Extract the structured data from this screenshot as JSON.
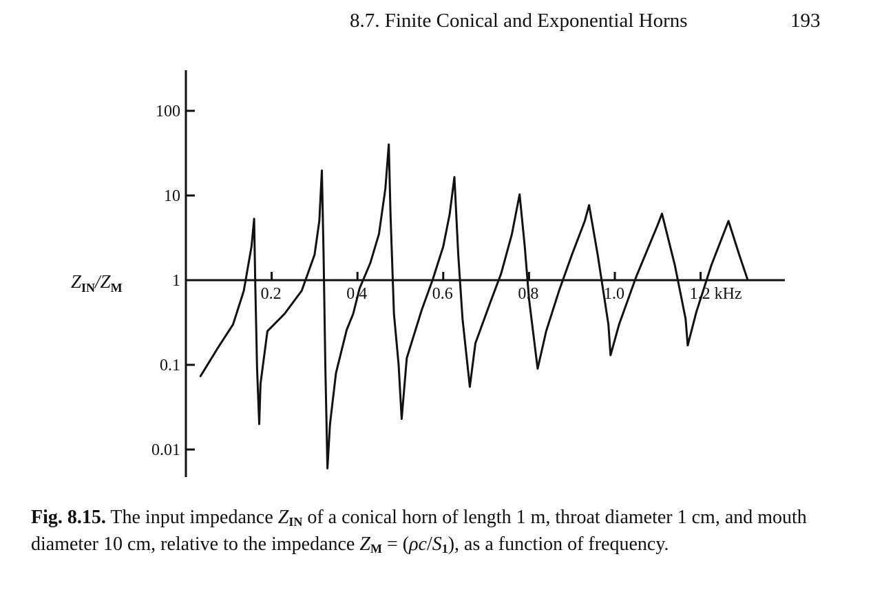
{
  "header": {
    "running_head": "8.7. Finite Conical and Exponential Horns",
    "page_number": "193"
  },
  "chart_data": {
    "type": "line",
    "title": "",
    "xlabel": "kHz",
    "ylabel": "Z_IN/Z_M",
    "ylabel_main": "Z",
    "ylabel_sub1": "IN",
    "ylabel_sep": "/Z",
    "ylabel_sub2": "M",
    "y_scale": "log",
    "xlim": [
      0.0,
      1.37
    ],
    "ylim": [
      0.005,
      300
    ],
    "grid": false,
    "x_ticks": [
      {
        "value": 0.2,
        "label": "0.2"
      },
      {
        "value": 0.4,
        "label": "0.4"
      },
      {
        "value": 0.6,
        "label": "0.6"
      },
      {
        "value": 0.8,
        "label": "0.8"
      },
      {
        "value": 1.0,
        "label": "1.0"
      },
      {
        "value": 1.2,
        "label": "1.2 kHz"
      }
    ],
    "y_ticks": [
      {
        "value": 100,
        "label": "100"
      },
      {
        "value": 10,
        "label": "10"
      },
      {
        "value": 1,
        "label": "1"
      },
      {
        "value": 0.1,
        "label": "0.1"
      },
      {
        "value": 0.01,
        "label": "0.01"
      }
    ],
    "series": [
      {
        "values": [
          {
            "x": 0.033,
            "y": 0.072
          },
          {
            "x": 0.075,
            "y": 0.16
          },
          {
            "x": 0.11,
            "y": 0.3
          },
          {
            "x": 0.135,
            "y": 0.75
          },
          {
            "x": 0.153,
            "y": 2.5
          },
          {
            "x": 0.159,
            "y": 5.3
          },
          {
            "x": 0.162,
            "y": 0.8
          },
          {
            "x": 0.166,
            "y": 0.09
          },
          {
            "x": 0.171,
            "y": 0.02
          },
          {
            "x": 0.174,
            "y": 0.06
          },
          {
            "x": 0.19,
            "y": 0.25
          },
          {
            "x": 0.23,
            "y": 0.4
          },
          {
            "x": 0.27,
            "y": 0.75
          },
          {
            "x": 0.3,
            "y": 2.0
          },
          {
            "x": 0.311,
            "y": 5.0
          },
          {
            "x": 0.317,
            "y": 19.7
          },
          {
            "x": 0.321,
            "y": 2.0
          },
          {
            "x": 0.325,
            "y": 0.1
          },
          {
            "x": 0.33,
            "y": 0.006
          },
          {
            "x": 0.336,
            "y": 0.02
          },
          {
            "x": 0.35,
            "y": 0.08
          },
          {
            "x": 0.375,
            "y": 0.26
          },
          {
            "x": 0.39,
            "y": 0.4
          },
          {
            "x": 0.405,
            "y": 0.8
          },
          {
            "x": 0.43,
            "y": 1.6
          },
          {
            "x": 0.45,
            "y": 3.5
          },
          {
            "x": 0.465,
            "y": 12.0
          },
          {
            "x": 0.473,
            "y": 40.0
          },
          {
            "x": 0.477,
            "y": 6.0
          },
          {
            "x": 0.485,
            "y": 0.4
          },
          {
            "x": 0.496,
            "y": 0.1
          },
          {
            "x": 0.503,
            "y": 0.023
          },
          {
            "x": 0.515,
            "y": 0.12
          },
          {
            "x": 0.55,
            "y": 0.45
          },
          {
            "x": 0.575,
            "y": 1.0
          },
          {
            "x": 0.6,
            "y": 2.5
          },
          {
            "x": 0.615,
            "y": 6.0
          },
          {
            "x": 0.626,
            "y": 16.5
          },
          {
            "x": 0.635,
            "y": 2.0
          },
          {
            "x": 0.645,
            "y": 0.35
          },
          {
            "x": 0.662,
            "y": 0.055
          },
          {
            "x": 0.675,
            "y": 0.18
          },
          {
            "x": 0.71,
            "y": 0.55
          },
          {
            "x": 0.735,
            "y": 1.2
          },
          {
            "x": 0.76,
            "y": 3.5
          },
          {
            "x": 0.778,
            "y": 10.3
          },
          {
            "x": 0.79,
            "y": 2.5
          },
          {
            "x": 0.8,
            "y": 0.6
          },
          {
            "x": 0.82,
            "y": 0.09
          },
          {
            "x": 0.84,
            "y": 0.25
          },
          {
            "x": 0.87,
            "y": 0.75
          },
          {
            "x": 0.9,
            "y": 2.0
          },
          {
            "x": 0.93,
            "y": 5.0
          },
          {
            "x": 0.94,
            "y": 7.7
          },
          {
            "x": 0.96,
            "y": 2.0
          },
          {
            "x": 0.985,
            "y": 0.3
          },
          {
            "x": 0.99,
            "y": 0.13
          },
          {
            "x": 1.01,
            "y": 0.3
          },
          {
            "x": 1.05,
            "y": 1.1
          },
          {
            "x": 1.1,
            "y": 4.5
          },
          {
            "x": 1.11,
            "y": 6.1
          },
          {
            "x": 1.14,
            "y": 1.5
          },
          {
            "x": 1.165,
            "y": 0.35
          },
          {
            "x": 1.17,
            "y": 0.17
          },
          {
            "x": 1.19,
            "y": 0.42
          },
          {
            "x": 1.225,
            "y": 1.5
          },
          {
            "x": 1.265,
            "y": 5.0
          },
          {
            "x": 1.29,
            "y": 2.0
          },
          {
            "x": 1.31,
            "y": 1.0
          }
        ]
      }
    ]
  },
  "caption": {
    "label": "Fig. 8.15.",
    "t1": " The input impedance ",
    "zin": "Z",
    "zin_sub": "IN",
    "t2": " of a conical horn of length 1 m, throat diameter 1 cm, and mouth diameter 10 cm, relative to the impedance ",
    "zm": "Z",
    "zm_sub": "M",
    "t3": " = (",
    "rho_c": "ρc",
    "slash": "/",
    "s": "S",
    "s_sub": "1",
    "t4": "), as a function of frequency."
  }
}
